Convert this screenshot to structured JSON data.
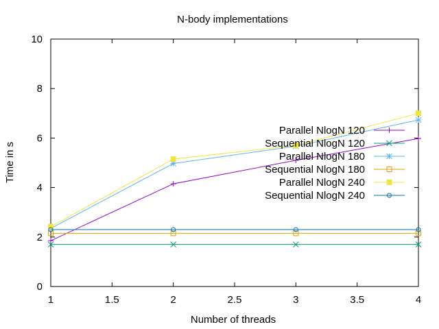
{
  "chart_data": {
    "type": "line",
    "title": "N-body implementations",
    "xlabel": "Number of threads",
    "ylabel": "Time in s",
    "xlim": [
      1,
      4
    ],
    "ylim": [
      0,
      10
    ],
    "x_ticks": [
      1,
      1.5,
      2,
      2.5,
      3,
      3.5,
      4
    ],
    "x_tick_labels": [
      "1",
      "1.5",
      "2",
      "2.5",
      "3",
      "3.5",
      "4"
    ],
    "y_ticks": [
      0,
      2,
      4,
      6,
      8,
      10
    ],
    "y_tick_labels": [
      "0",
      "2",
      "4",
      "6",
      "8",
      "10"
    ],
    "grid": false,
    "legend_position": "right",
    "x": [
      1,
      2,
      3,
      4
    ],
    "series": [
      {
        "name": "Parallel NlogN 120",
        "values": [
          1.85,
          4.15,
          5.1,
          5.98
        ],
        "color": "#9400d3",
        "marker": "plus"
      },
      {
        "name": "Sequential NlogN 120",
        "values": [
          1.7,
          1.7,
          1.7,
          1.7
        ],
        "color": "#009e73",
        "marker": "cross"
      },
      {
        "name": "Parallel NlogN 180",
        "values": [
          2.35,
          4.97,
          5.67,
          6.73
        ],
        "color": "#56b4e9",
        "marker": "star"
      },
      {
        "name": "Sequential NlogN 180",
        "values": [
          2.15,
          2.15,
          2.15,
          2.15
        ],
        "color": "#e69f00",
        "marker": "square-open"
      },
      {
        "name": "Parallel NlogN 240",
        "values": [
          2.42,
          5.15,
          5.7,
          7.0
        ],
        "color": "#f0e442",
        "marker": "square-filled"
      },
      {
        "name": "Sequential NlogN 240",
        "values": [
          2.3,
          2.3,
          2.3,
          2.3
        ],
        "color": "#0072b2",
        "marker": "circle-open"
      }
    ]
  }
}
